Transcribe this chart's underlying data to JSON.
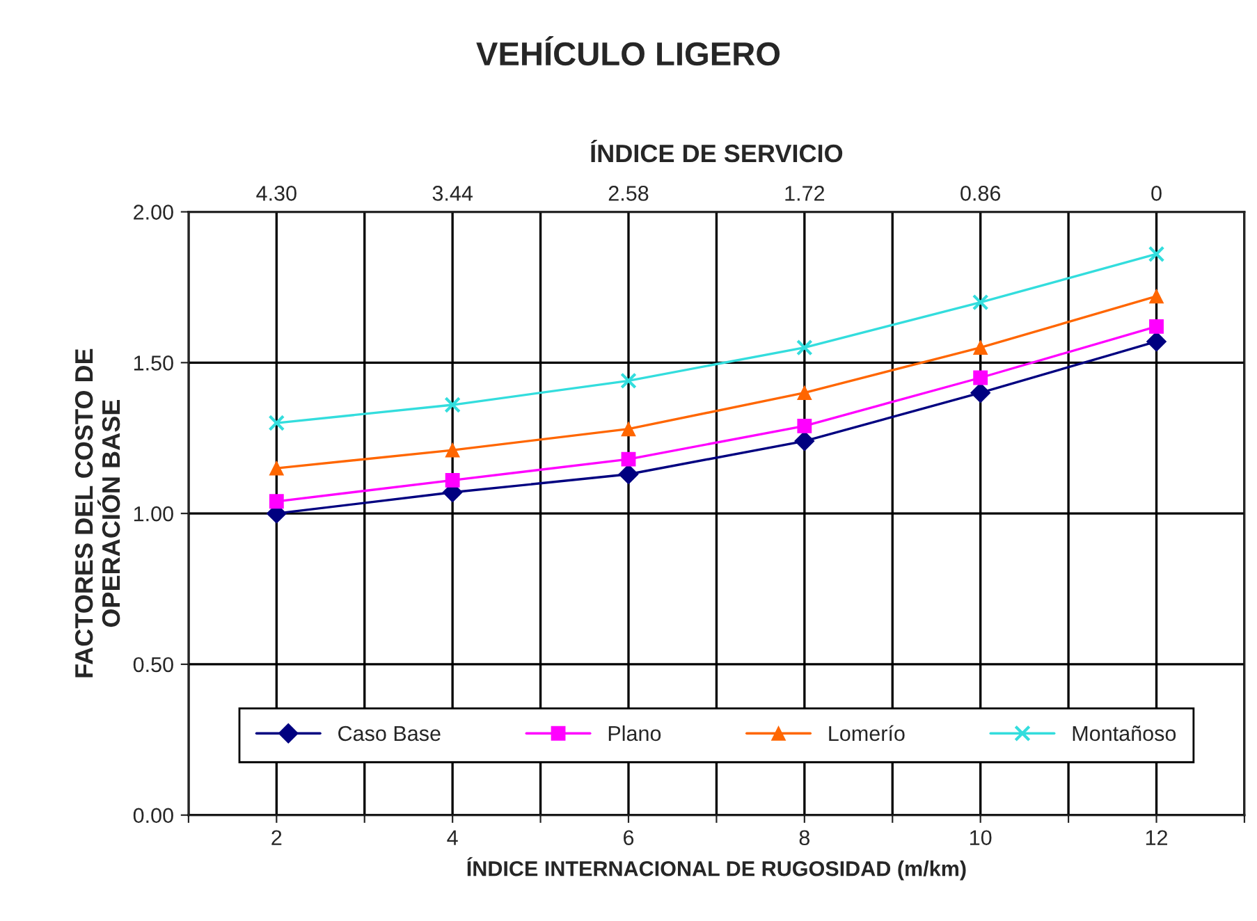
{
  "chart_data": {
    "type": "line",
    "title": "VEHÍCULO LIGERO",
    "x2label": "ÍNDICE DE SERVICIO",
    "xlabel": "ÍNDICE INTERNACIONAL DE RUGOSIDAD (m/km)",
    "ylabel": "FACTORES DEL COSTO DE\nOPERACIÓN BASE",
    "x": [
      2,
      4,
      6,
      8,
      10,
      12
    ],
    "series": [
      {
        "name": "Caso Base",
        "color": "#000080",
        "marker": "diamond",
        "values": [
          1.0,
          1.07,
          1.13,
          1.24,
          1.4,
          1.57
        ]
      },
      {
        "name": "Plano",
        "color": "#ff00ff",
        "marker": "square",
        "values": [
          1.04,
          1.11,
          1.18,
          1.29,
          1.45,
          1.62
        ]
      },
      {
        "name": "Lomerío",
        "color": "#ff6600",
        "marker": "triangle",
        "values": [
          1.15,
          1.21,
          1.28,
          1.4,
          1.55,
          1.72
        ]
      },
      {
        "name": "Montañoso",
        "color": "#33dddd",
        "marker": "cross",
        "values": [
          1.3,
          1.36,
          1.44,
          1.55,
          1.7,
          1.86
        ]
      }
    ],
    "xlim": [
      1,
      13
    ],
    "xticks": [
      {
        "value": 1,
        "label": null
      },
      2,
      {
        "value": 3,
        "label": null
      },
      4,
      {
        "value": 5,
        "label": null
      },
      6,
      {
        "value": 7,
        "label": null
      },
      8,
      {
        "value": 9,
        "label": null
      },
      10,
      {
        "value": 11,
        "label": null
      },
      12,
      {
        "value": 13,
        "label": null
      }
    ],
    "x2lim": [
      4.73,
      -0.43
    ],
    "x2ticks": [
      {
        "value": 4.3,
        "label": "4.30"
      },
      3.44,
      2.58,
      1.72,
      0.86,
      0
    ],
    "ylim": [
      0,
      2
    ],
    "yticks": [
      {
        "value": 0,
        "label": "0.00"
      },
      {
        "value": 0.5,
        "label": "0.50"
      },
      {
        "value": 1,
        "label": "1.00"
      },
      {
        "value": 1.5,
        "label": "1.50"
      },
      {
        "value": 2,
        "label": "2.00"
      }
    ],
    "grid": true,
    "legend": "bottom",
    "line_style": "solid"
  }
}
